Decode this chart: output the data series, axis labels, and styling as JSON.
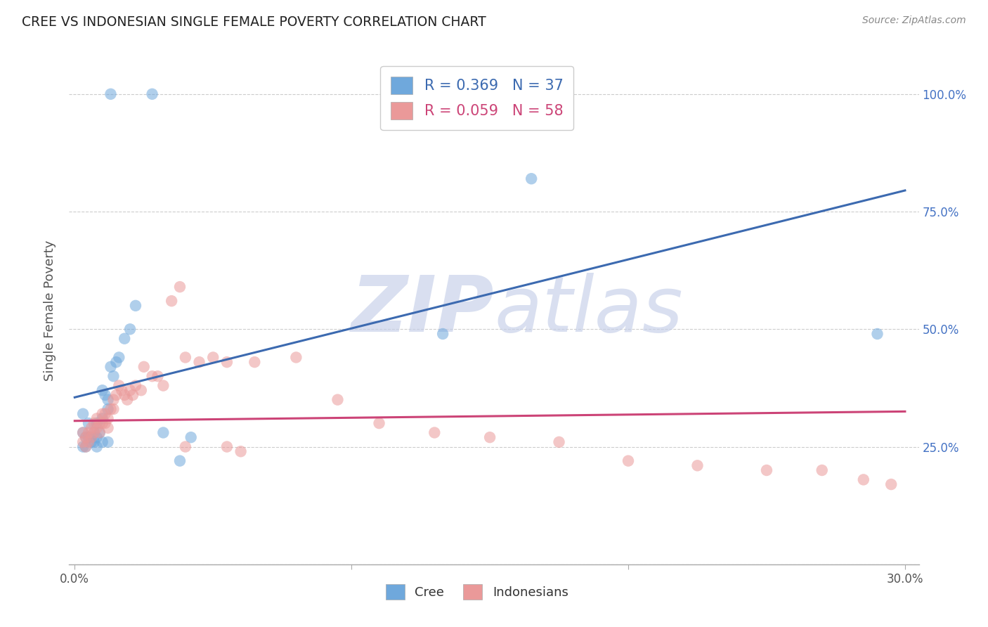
{
  "title": "CREE VS INDONESIAN SINGLE FEMALE POVERTY CORRELATION CHART",
  "source": "Source: ZipAtlas.com",
  "ylabel": "Single Female Poverty",
  "cree_R": 0.369,
  "cree_N": 37,
  "indonesian_R": 0.059,
  "indonesian_N": 58,
  "cree_color": "#6fa8dc",
  "indonesian_color": "#ea9999",
  "cree_line_color": "#3c6ab0",
  "indonesian_line_color": "#cc4477",
  "watermark_zip": "ZIP",
  "watermark_atlas": "atlas",
  "cree_x": [
    0.013,
    0.028,
    0.003,
    0.003,
    0.004,
    0.005,
    0.005,
    0.006,
    0.007,
    0.007,
    0.008,
    0.008,
    0.009,
    0.01,
    0.01,
    0.011,
    0.012,
    0.012,
    0.013,
    0.014,
    0.015,
    0.016,
    0.018,
    0.02,
    0.022,
    0.032,
    0.038,
    0.042,
    0.133,
    0.165,
    0.29,
    0.003,
    0.004,
    0.006,
    0.008,
    0.01,
    0.012
  ],
  "cree_y": [
    1.0,
    1.0,
    0.32,
    0.28,
    0.27,
    0.3,
    0.27,
    0.27,
    0.28,
    0.26,
    0.3,
    0.27,
    0.28,
    0.37,
    0.31,
    0.36,
    0.35,
    0.33,
    0.42,
    0.4,
    0.43,
    0.44,
    0.48,
    0.5,
    0.55,
    0.28,
    0.22,
    0.27,
    0.49,
    0.82,
    0.49,
    0.25,
    0.25,
    0.26,
    0.25,
    0.26,
    0.26
  ],
  "indonesian_x": [
    0.003,
    0.003,
    0.004,
    0.004,
    0.005,
    0.005,
    0.006,
    0.006,
    0.007,
    0.007,
    0.008,
    0.008,
    0.009,
    0.009,
    0.01,
    0.01,
    0.011,
    0.011,
    0.012,
    0.012,
    0.013,
    0.014,
    0.014,
    0.015,
    0.016,
    0.017,
    0.018,
    0.019,
    0.02,
    0.021,
    0.022,
    0.024,
    0.025,
    0.028,
    0.03,
    0.032,
    0.035,
    0.038,
    0.04,
    0.045,
    0.05,
    0.055,
    0.065,
    0.08,
    0.095,
    0.11,
    0.13,
    0.15,
    0.175,
    0.2,
    0.225,
    0.25,
    0.27,
    0.285,
    0.295,
    0.04,
    0.055,
    0.06
  ],
  "indonesian_y": [
    0.28,
    0.26,
    0.27,
    0.25,
    0.28,
    0.26,
    0.29,
    0.27,
    0.3,
    0.28,
    0.31,
    0.29,
    0.3,
    0.28,
    0.32,
    0.3,
    0.32,
    0.3,
    0.31,
    0.29,
    0.33,
    0.35,
    0.33,
    0.36,
    0.38,
    0.37,
    0.36,
    0.35,
    0.37,
    0.36,
    0.38,
    0.37,
    0.42,
    0.4,
    0.4,
    0.38,
    0.56,
    0.59,
    0.44,
    0.43,
    0.44,
    0.43,
    0.43,
    0.44,
    0.35,
    0.3,
    0.28,
    0.27,
    0.26,
    0.22,
    0.21,
    0.2,
    0.2,
    0.18,
    0.17,
    0.25,
    0.25,
    0.24
  ],
  "blue_line_x0": 0.0,
  "blue_line_y0": 0.355,
  "blue_line_x1": 0.3,
  "blue_line_y1": 0.795,
  "pink_line_x0": 0.0,
  "pink_line_y0": 0.305,
  "pink_line_x1": 0.3,
  "pink_line_y1": 0.325,
  "xlim_min": -0.002,
  "xlim_max": 0.305,
  "ylim_min": 0.0,
  "ylim_max": 1.08,
  "xtick_pos": [
    0.0,
    0.1,
    0.2,
    0.3
  ],
  "xtick_labels": [
    "0.0%",
    "",
    "",
    "30.0%"
  ],
  "ytick_pos": [
    0.0,
    0.25,
    0.5,
    0.75,
    1.0
  ],
  "ytick_labels_right": [
    "",
    "25.0%",
    "50.0%",
    "75.0%",
    "100.0%"
  ]
}
